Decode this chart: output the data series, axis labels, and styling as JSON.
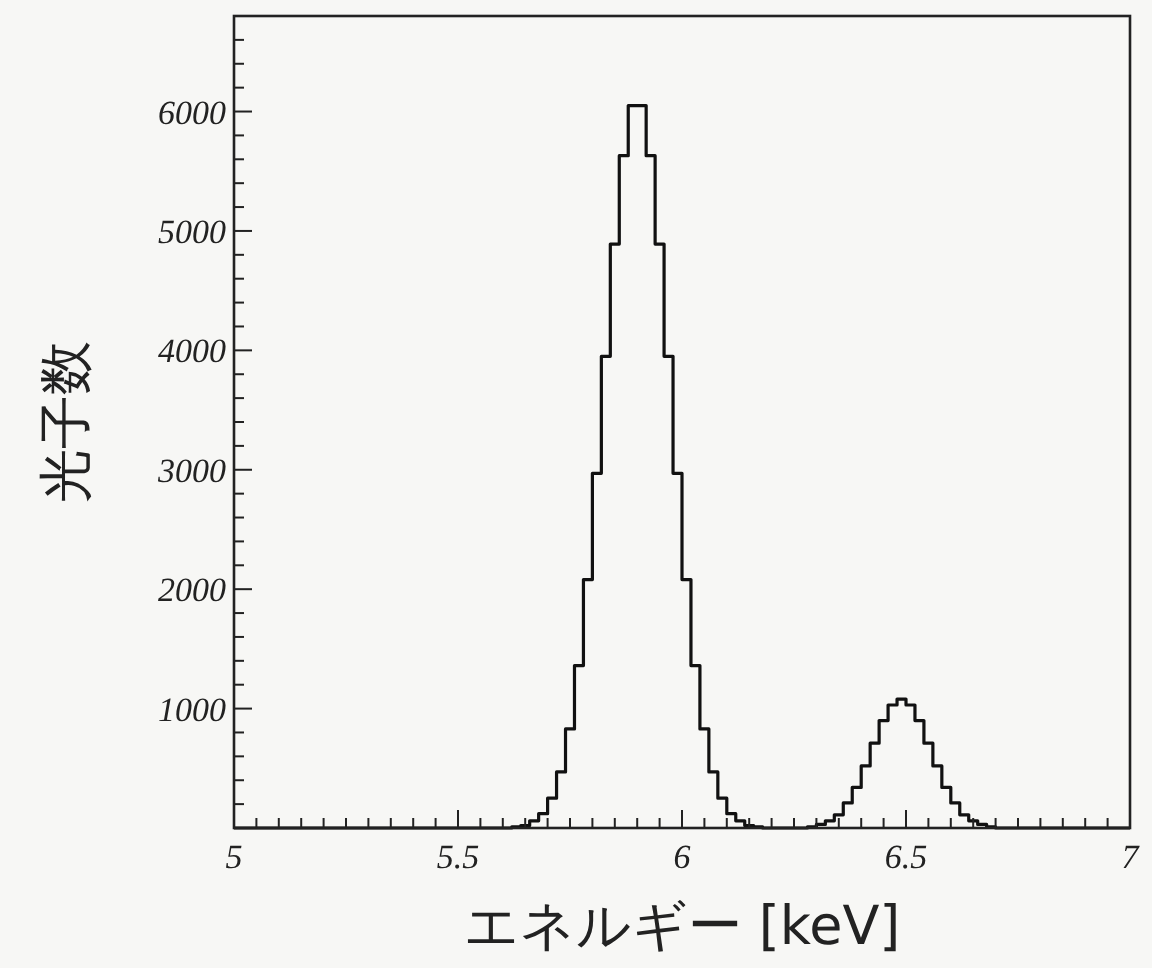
{
  "chart_data": {
    "type": "histogram",
    "xlabel": "エネルギー [keV]",
    "ylabel": "光子数",
    "color": "#111111",
    "bins": [
      5.0,
      5.02,
      5.04,
      5.06,
      5.08,
      5.1,
      5.12,
      5.14,
      5.16,
      5.18,
      5.2,
      5.22,
      5.24,
      5.26,
      5.28,
      5.3,
      5.32,
      5.34,
      5.36,
      5.38,
      5.4,
      5.42,
      5.44,
      5.46,
      5.48,
      5.5,
      5.52,
      5.54,
      5.56,
      5.58,
      5.6,
      5.62,
      5.64,
      5.66,
      5.68,
      5.7,
      5.72,
      5.74,
      5.76,
      5.78,
      5.8,
      5.82,
      5.84,
      5.86,
      5.88,
      5.9,
      5.92,
      5.94,
      5.96,
      5.98,
      6.0,
      6.02,
      6.04,
      6.06,
      6.08,
      6.1,
      6.12,
      6.14,
      6.16,
      6.18,
      6.2,
      6.22,
      6.24,
      6.26,
      6.28,
      6.3,
      6.32,
      6.34,
      6.36,
      6.38,
      6.4,
      6.42,
      6.44,
      6.46,
      6.48,
      6.5,
      6.52,
      6.54,
      6.56,
      6.58,
      6.6,
      6.62,
      6.64,
      6.66,
      6.68,
      6.7,
      6.72,
      6.74,
      6.76,
      6.78,
      6.8,
      6.82,
      6.84,
      6.86,
      6.88,
      6.9,
      6.92,
      6.94,
      6.96,
      6.98,
      7.0
    ],
    "values": [
      0,
      0,
      0,
      0,
      0,
      0,
      0,
      0,
      0,
      0,
      0,
      0,
      0,
      0,
      0,
      0,
      0,
      0,
      0,
      0,
      0,
      0,
      0,
      0,
      0,
      0,
      0,
      0,
      0,
      0,
      0,
      10,
      20,
      60,
      120,
      250,
      470,
      830,
      1360,
      2080,
      2970,
      3950,
      4890,
      5630,
      6050,
      6050,
      5630,
      4890,
      3950,
      2970,
      2080,
      1360,
      830,
      470,
      250,
      120,
      60,
      20,
      10,
      0,
      0,
      0,
      0,
      0,
      10,
      30,
      60,
      110,
      210,
      340,
      520,
      710,
      900,
      1030,
      1080,
      1030,
      900,
      710,
      520,
      340,
      210,
      110,
      60,
      30,
      10,
      0,
      0,
      0,
      0,
      0,
      0,
      0,
      0,
      0,
      0,
      0,
      0,
      0,
      0,
      0
    ],
    "xlim": [
      5,
      7
    ],
    "ylim": [
      0,
      6800
    ],
    "xticks": [
      5,
      {
        "value": 5.05,
        "label": null
      },
      {
        "value": 5.1,
        "label": null
      },
      {
        "value": 5.15,
        "label": null
      },
      {
        "value": 5.2,
        "label": null
      },
      {
        "value": 5.25,
        "label": null
      },
      {
        "value": 5.3,
        "label": null
      },
      {
        "value": 5.35,
        "label": null
      },
      {
        "value": 5.4,
        "label": null
      },
      {
        "value": 5.45,
        "label": null
      },
      5.5,
      {
        "value": 5.55,
        "label": null
      },
      {
        "value": 5.6,
        "label": null
      },
      {
        "value": 5.65,
        "label": null
      },
      {
        "value": 5.7,
        "label": null
      },
      {
        "value": 5.75,
        "label": null
      },
      {
        "value": 5.8,
        "label": null
      },
      {
        "value": 5.85,
        "label": null
      },
      {
        "value": 5.9,
        "label": null
      },
      {
        "value": 5.95,
        "label": null
      },
      6,
      {
        "value": 6.05,
        "label": null
      },
      {
        "value": 6.1,
        "label": null
      },
      {
        "value": 6.15,
        "label": null
      },
      {
        "value": 6.2,
        "label": null
      },
      {
        "value": 6.25,
        "label": null
      },
      {
        "value": 6.3,
        "label": null
      },
      {
        "value": 6.35,
        "label": null
      },
      {
        "value": 6.4,
        "label": null
      },
      {
        "value": 6.45,
        "label": null
      },
      6.5,
      {
        "value": 6.55,
        "label": null
      },
      {
        "value": 6.6,
        "label": null
      },
      {
        "value": 6.65,
        "label": null
      },
      {
        "value": 6.7,
        "label": null
      },
      {
        "value": 6.75,
        "label": null
      },
      {
        "value": 6.8,
        "label": null
      },
      {
        "value": 6.85,
        "label": null
      },
      {
        "value": 6.9,
        "label": null
      },
      {
        "value": 6.95,
        "label": null
      },
      7
    ],
    "yticks": [
      {
        "value": 200,
        "label": null
      },
      {
        "value": 400,
        "label": null
      },
      {
        "value": 600,
        "label": null
      },
      {
        "value": 800,
        "label": null
      },
      1000,
      {
        "value": 1200,
        "label": null
      },
      {
        "value": 1400,
        "label": null
      },
      {
        "value": 1600,
        "label": null
      },
      {
        "value": 1800,
        "label": null
      },
      2000,
      {
        "value": 2200,
        "label": null
      },
      {
        "value": 2400,
        "label": null
      },
      {
        "value": 2600,
        "label": null
      },
      {
        "value": 2800,
        "label": null
      },
      3000,
      {
        "value": 3200,
        "label": null
      },
      {
        "value": 3400,
        "label": null
      },
      {
        "value": 3600,
        "label": null
      },
      {
        "value": 3800,
        "label": null
      },
      4000,
      {
        "value": 4200,
        "label": null
      },
      {
        "value": 4400,
        "label": null
      },
      {
        "value": 4600,
        "label": null
      },
      {
        "value": 4800,
        "label": null
      },
      5000,
      {
        "value": 5200,
        "label": null
      },
      {
        "value": 5400,
        "label": null
      },
      {
        "value": 5600,
        "label": null
      },
      {
        "value": 5800,
        "label": null
      },
      6000,
      {
        "value": 6200,
        "label": null
      },
      {
        "value": 6400,
        "label": null
      },
      {
        "value": 6600,
        "label": null
      }
    ]
  }
}
